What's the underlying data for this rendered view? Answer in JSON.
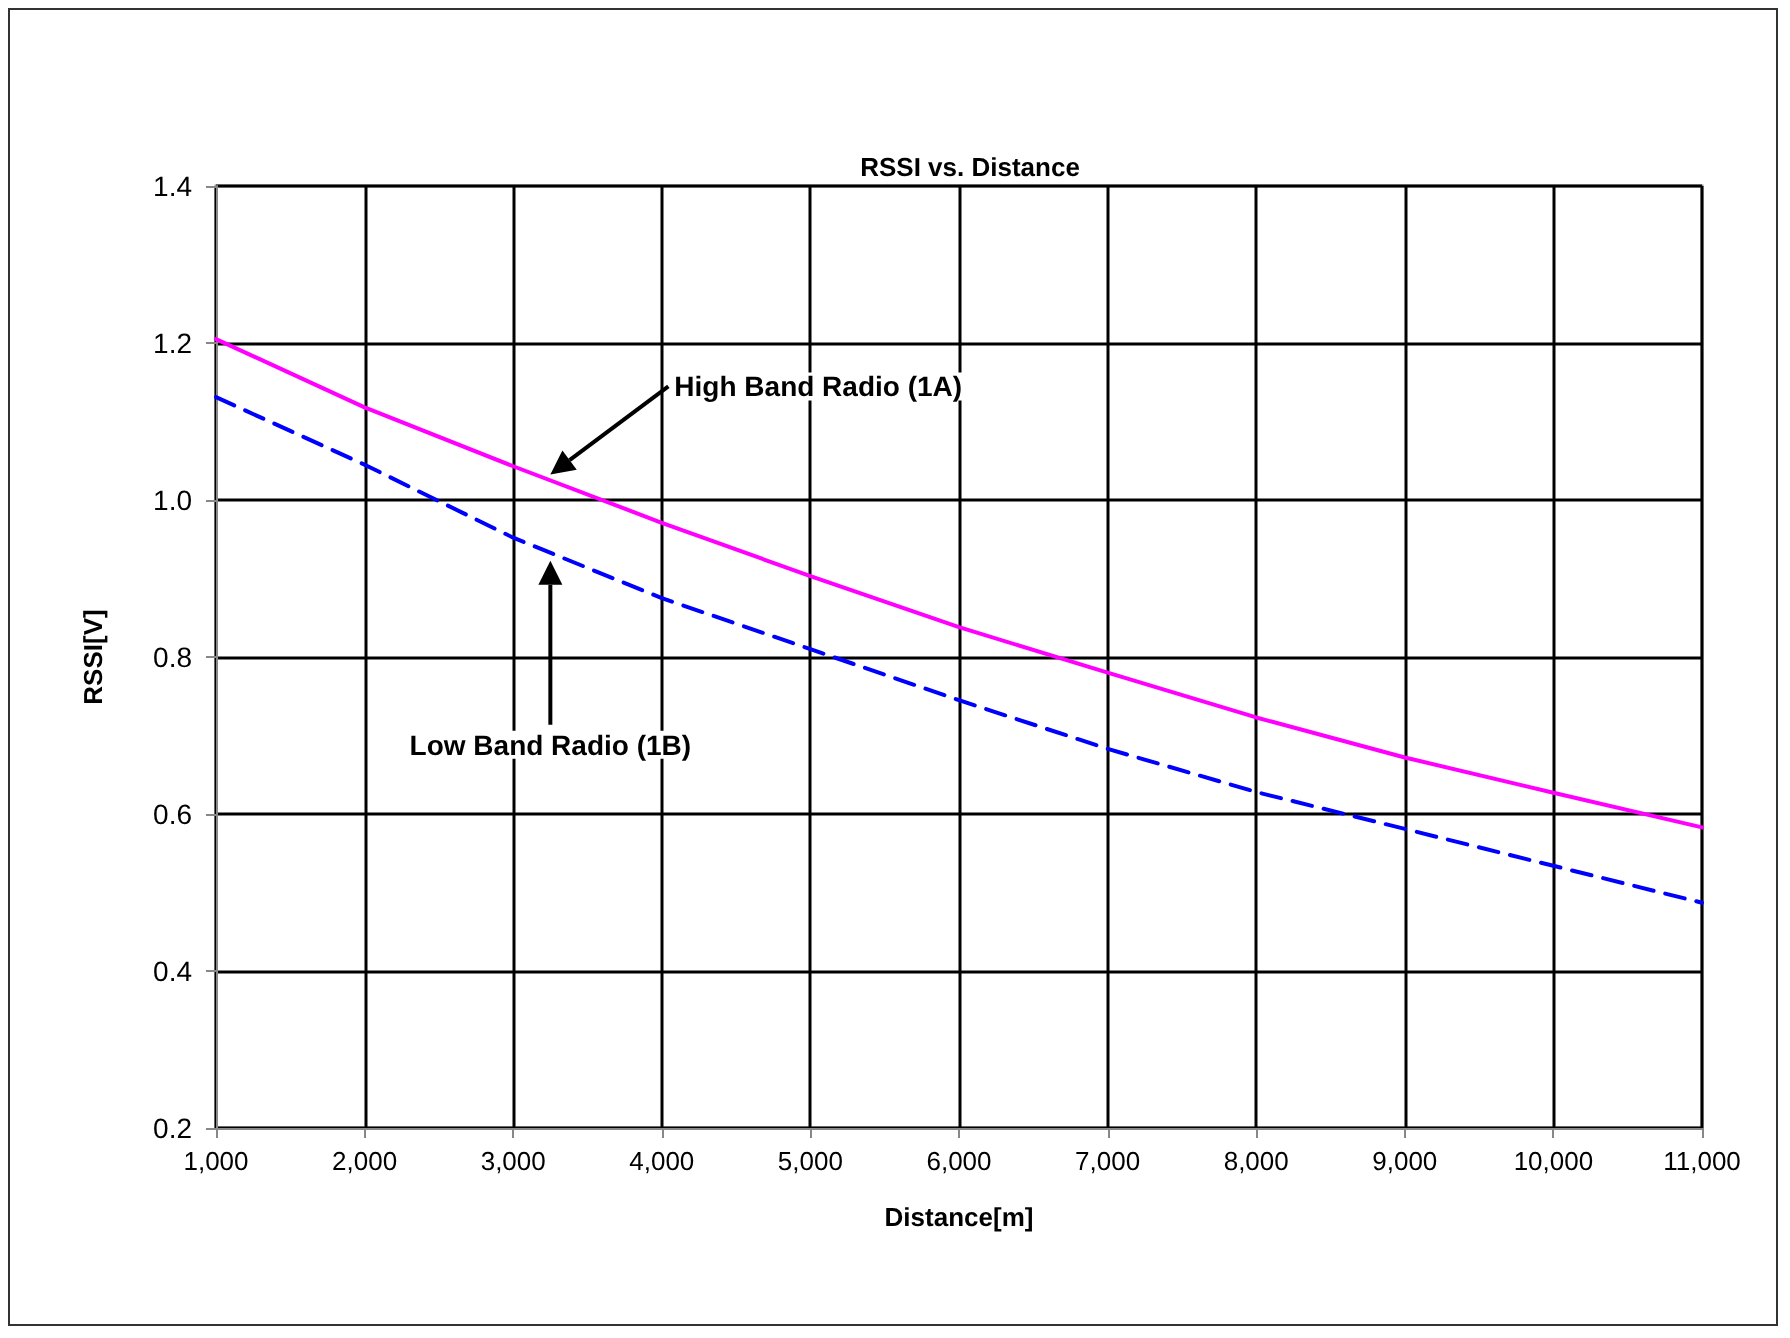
{
  "chart_data": {
    "type": "line",
    "title": "RSSI vs. Distance",
    "xlabel": "Distance[m]",
    "ylabel": "RSSI[V]",
    "x": [
      1000,
      2000,
      3000,
      4000,
      5000,
      6000,
      7000,
      8000,
      9000,
      10000,
      11000
    ],
    "series": [
      {
        "color": "#ff00ff",
        "line_style": "solid",
        "values": [
          1.205,
          1.118,
          1.043,
          0.971,
          0.903,
          0.838,
          0.78,
          0.723,
          0.672,
          0.627,
          0.583
        ]
      },
      {
        "color": "#0000ff",
        "line_style": "dashed",
        "values": [
          1.131,
          1.045,
          0.952,
          0.875,
          0.81,
          0.745,
          0.683,
          0.628,
          0.581,
          0.534,
          0.487
        ]
      }
    ],
    "xlim": [
      1000,
      11000
    ],
    "xticks": [
      {
        "value": 1000,
        "label": "1,000"
      },
      {
        "value": 2000,
        "label": "2,000"
      },
      {
        "value": 3000,
        "label": "3,000"
      },
      {
        "value": 4000,
        "label": "4,000"
      },
      {
        "value": 5000,
        "label": "5,000"
      },
      {
        "value": 6000,
        "label": "6,000"
      },
      {
        "value": 7000,
        "label": "7,000"
      },
      {
        "value": 8000,
        "label": "8,000"
      },
      {
        "value": 9000,
        "label": "9,000"
      },
      {
        "value": 10000,
        "label": "10,000"
      },
      {
        "value": 11000,
        "label": "11,000"
      }
    ],
    "ylim": [
      0.2,
      1.4
    ],
    "yticks": [
      {
        "value": 0.2,
        "label": "0.2"
      },
      {
        "value": 0.4,
        "label": "0.4"
      },
      {
        "value": 0.6,
        "label": "0.6"
      },
      {
        "value": 0.8,
        "label": "0.8"
      },
      {
        "value": 1.0,
        "label": "1.0"
      },
      {
        "value": 1.2,
        "label": "1.2"
      },
      {
        "value": 1.4,
        "label": "1.4"
      }
    ],
    "grid": true,
    "marker": "none",
    "annotations": [
      "High Band Radio (1A)",
      "Low Band Radio (1B)"
    ]
  }
}
